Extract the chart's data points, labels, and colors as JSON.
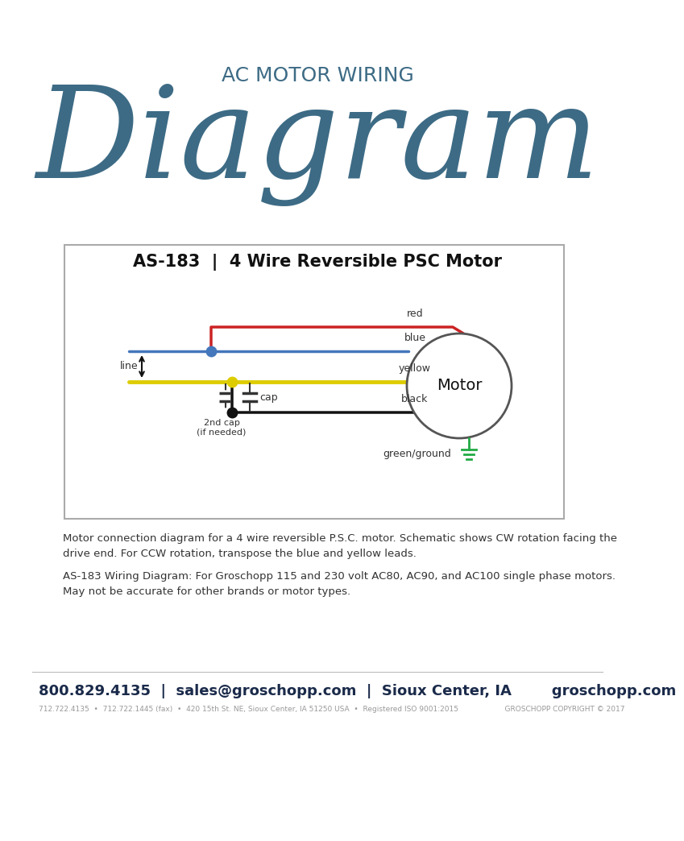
{
  "bg_color": "#ffffff",
  "title_small": "AC MOTOR WIRING",
  "title_large": "Diagram",
  "title_color": "#3d6b85",
  "box_title": "AS-183  |  4 Wire Reversible PSC Motor",
  "wire_colors": {
    "red": "#cc2222",
    "blue": "#4477bb",
    "yellow": "#ddcc00",
    "black": "#111111",
    "green": "#22aa44"
  },
  "wire_labels": [
    "red",
    "blue",
    "yellow",
    "black"
  ],
  "motor_label": "Motor",
  "ground_label": "green/ground",
  "cap_label": "cap",
  "cap2_label": "2nd cap\n(if needed)",
  "line_label": "line",
  "description1": "Motor connection diagram for a 4 wire reversible P.S.C. motor. Schematic shows CW rotation facing the\ndrive end. For CCW rotation, transpose the blue and yellow leads.",
  "description2": "AS-183 Wiring Diagram: For Groschopp 115 and 230 volt AC80, AC90, and AC100 single phase motors.\nMay not be accurate for other brands or motor types.",
  "footer_main": "800.829.4135  |  sales@groschopp.com  |  Sioux Center, IA        groschopp.com",
  "footer_sub": "712.722.4135  •  712.722.1445 (fax)  •  420 15th St. NE, Sioux Center, IA 51250 USA  •  Registered ISO 9001:2015                    GROSCHOPP COPYRIGHT © 2017",
  "footer_color": "#1a2a4a",
  "text_color": "#333333"
}
